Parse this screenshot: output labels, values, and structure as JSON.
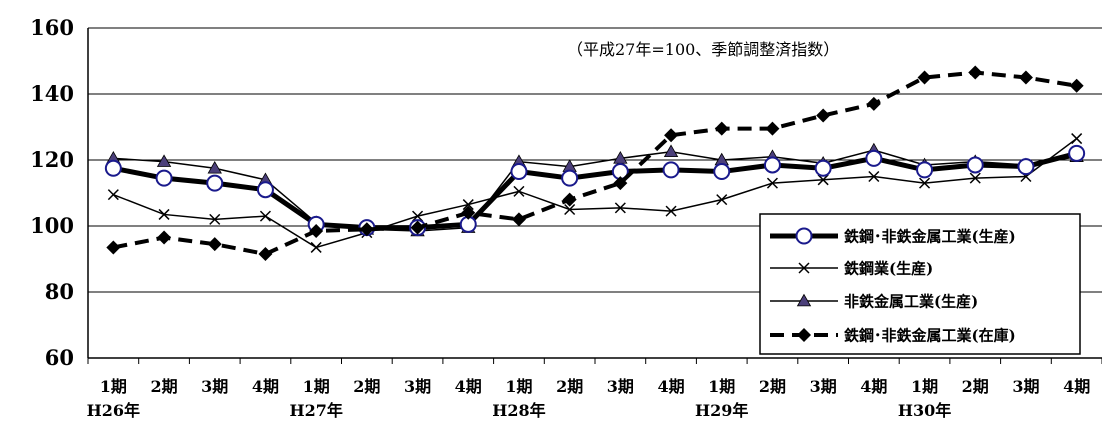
{
  "chart_data": {
    "type": "line",
    "annotation": "（平成27年=100、季節調整済指数）",
    "ylim": [
      60,
      160
    ],
    "yticks": [
      60,
      80,
      100,
      120,
      140,
      160
    ],
    "grid": true,
    "legend_position": "right",
    "x_labels": [
      "1期",
      "2期",
      "3期",
      "4期",
      "1期",
      "2期",
      "3期",
      "4期",
      "1期",
      "2期",
      "3期",
      "4期",
      "1期",
      "2期",
      "3期",
      "4期",
      "1期",
      "2期",
      "3期",
      "4期"
    ],
    "year_labels": [
      {
        "label": "H26年",
        "index": 0
      },
      {
        "label": "H27年",
        "index": 4
      },
      {
        "label": "H28年",
        "index": 8
      },
      {
        "label": "H29年",
        "index": 12
      },
      {
        "label": "H30年",
        "index": 16
      }
    ],
    "series": [
      {
        "name": "鉄鋼･非鉄金属工業(生産)",
        "style": "thick-circle",
        "color": "#000000",
        "marker_color": "#1a1a8c",
        "values": [
          117.5,
          114.5,
          113,
          111,
          100.5,
          99.5,
          99.5,
          100.5,
          116.5,
          114.5,
          116.5,
          117,
          116.5,
          118.5,
          117.5,
          120.5,
          117,
          118.5,
          118,
          122
        ]
      },
      {
        "name": "鉄鋼業(生産)",
        "style": "thin-x",
        "color": "#000000",
        "values": [
          109.5,
          103.5,
          102,
          103,
          93.5,
          98,
          103,
          106.5,
          110.5,
          105,
          105.5,
          104.5,
          108,
          113,
          114,
          115,
          113,
          114.5,
          115,
          126.5
        ]
      },
      {
        "name": "非鉄金属工業(生産)",
        "style": "thin-triangle",
        "color": "#000000",
        "marker_color": "#4b3f7a",
        "values": [
          120.5,
          119.5,
          117.5,
          114,
          101,
          99,
          98.5,
          99.5,
          119.5,
          118,
          120.5,
          122.5,
          120,
          121,
          119,
          123,
          118.5,
          119.5,
          118.5,
          121
        ]
      },
      {
        "name": "鉄鋼･非鉄金属工業(在庫)",
        "style": "dashed-diamond",
        "color": "#000000",
        "values": [
          93.5,
          96.5,
          94.5,
          91.5,
          98.5,
          99,
          99.5,
          104,
          102,
          108,
          113,
          127.5,
          129.5,
          129.5,
          133.5,
          137,
          145,
          146.5,
          145,
          142.5
        ]
      }
    ]
  }
}
